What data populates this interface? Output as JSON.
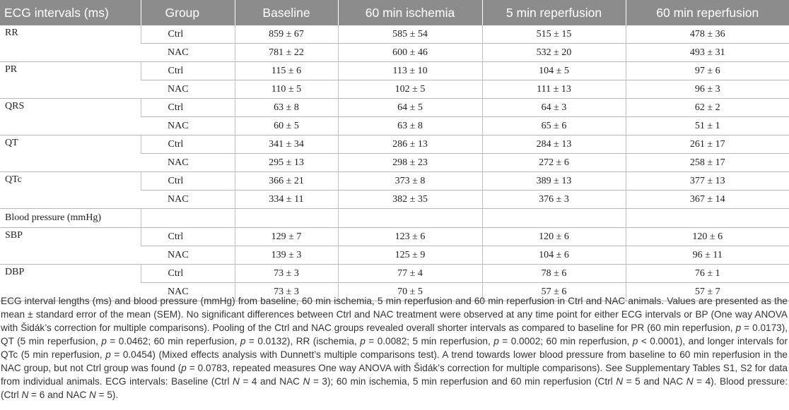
{
  "table": {
    "headers": [
      "ECG intervals (ms)",
      "Group",
      "Baseline",
      "60 min ischemia",
      "5 min reperfusion",
      "60 min reperfusion"
    ],
    "ecg_rows": [
      {
        "label": "RR",
        "ctrl": {
          "group": "Ctrl",
          "values": [
            "859 ± 67",
            "585 ± 54",
            "515 ± 15",
            "478 ± 36"
          ]
        },
        "nac": {
          "group": "NAC",
          "values": [
            "781 ± 22",
            "600 ± 46",
            "532 ± 20",
            "493 ± 31"
          ]
        }
      },
      {
        "label": "PR",
        "ctrl": {
          "group": "Ctrl",
          "values": [
            "115 ± 6",
            "113 ± 10",
            "104 ± 5",
            "97 ± 6"
          ]
        },
        "nac": {
          "group": "NAC",
          "values": [
            "110 ± 5",
            "102 ± 5",
            "111 ± 13",
            "96 ± 3"
          ]
        }
      },
      {
        "label": "QRS",
        "ctrl": {
          "group": "Ctrl",
          "values": [
            "63 ± 8",
            "64 ± 5",
            "64 ± 3",
            "62 ± 2"
          ]
        },
        "nac": {
          "group": "NAC",
          "values": [
            "60 ± 5",
            "63 ± 8",
            "65 ± 6",
            "51 ± 1"
          ]
        }
      },
      {
        "label": "QT",
        "ctrl": {
          "group": "Ctrl",
          "values": [
            "341 ± 34",
            "286 ± 13",
            "284 ± 13",
            "261 ± 17"
          ]
        },
        "nac": {
          "group": "NAC",
          "values": [
            "295 ± 13",
            "298 ± 23",
            "272 ± 6",
            "258 ± 17"
          ]
        }
      },
      {
        "label": "QTc",
        "ctrl": {
          "group": "Ctrl",
          "values": [
            "366 ± 21",
            "373 ± 8",
            "389 ± 13",
            "377 ± 13"
          ]
        },
        "nac": {
          "group": "NAC",
          "values": [
            "334 ± 11",
            "382 ± 35",
            "376 ± 3",
            "367 ± 14"
          ]
        }
      }
    ],
    "bp_section_label": "Blood pressure (mmHg)",
    "bp_rows": [
      {
        "label": "SBP",
        "ctrl": {
          "group": "Ctrl",
          "values": [
            "129 ± 7",
            "123 ± 6",
            "120 ± 6",
            "120 ± 6"
          ]
        },
        "nac": {
          "group": "NAC",
          "values": [
            "139 ± 3",
            "125 ± 9",
            "104 ± 6",
            "96 ± 11"
          ]
        }
      },
      {
        "label": "DBP",
        "ctrl": {
          "group": "Ctrl",
          "values": [
            "73 ± 3",
            "77 ± 4",
            "78 ± 6",
            "76 ± 1"
          ]
        },
        "nac": {
          "group": "NAC",
          "values": [
            "73 ± 3",
            "70 ± 5",
            "57 ± 6",
            "57 ± 7"
          ]
        }
      }
    ]
  },
  "caption": {
    "segments": [
      {
        "text": "ECG interval lengths (ms) and blood pressure (mmHg) from baseline, 60 min ischemia, 5 min reperfusion and 60 min reperfusion in Ctrl and NAC animals. Values are presented as the mean ± standard error of the mean (SEM). No significant differences between Ctrl and NAC treatment were observed at any time point for either ECG intervals or BP (One way ANOVA with Šidák’s correction for multiple comparisons). Pooling of the Ctrl and NAC groups revealed overall shorter intervals as compared to baseline for PR (60 min reperfusion, ",
        "italic": false
      },
      {
        "text": "p",
        "italic": true
      },
      {
        "text": " = 0.0173), QT (5 min reperfusion, ",
        "italic": false
      },
      {
        "text": "p",
        "italic": true
      },
      {
        "text": " = 0.0462; 60 min reperfusion, ",
        "italic": false
      },
      {
        "text": "p",
        "italic": true
      },
      {
        "text": " = 0.0132), RR (ischemia, ",
        "italic": false
      },
      {
        "text": "p",
        "italic": true
      },
      {
        "text": " = 0.0082; 5 min reperfusion, ",
        "italic": false
      },
      {
        "text": "p",
        "italic": true
      },
      {
        "text": " = 0.0002; 60 min reperfusion, ",
        "italic": false
      },
      {
        "text": "p",
        "italic": true
      },
      {
        "text": " < 0.0001), and longer intervals for QTc (5 min reperfusion, ",
        "italic": false
      },
      {
        "text": "p",
        "italic": true
      },
      {
        "text": " = 0.0454) (Mixed effects analysis with Dunnett’s multiple comparisons test). A trend towards lower blood pressure from baseline to 60 min reperfusion in the NAC group, but not Ctrl group was found (",
        "italic": false
      },
      {
        "text": "p",
        "italic": true
      },
      {
        "text": " = 0.0783, repeated measures One way ANOVA with Šidák’s correction for multiple comparisons). See Supplementary Tables S1, S2 for data from individual animals. ECG intervals: Baseline (Ctrl ",
        "italic": false
      },
      {
        "text": "N",
        "italic": true
      },
      {
        "text": " = 4 and NAC ",
        "italic": false
      },
      {
        "text": "N",
        "italic": true
      },
      {
        "text": " = 3); 60 min ischemia, 5 min reperfusion and 60 min reperfusion (Ctrl ",
        "italic": false
      },
      {
        "text": "N",
        "italic": true
      },
      {
        "text": " = 5 and NAC ",
        "italic": false
      },
      {
        "text": "N",
        "italic": true
      },
      {
        "text": " = 4). Blood pressure: (Ctrl ",
        "italic": false
      },
      {
        "text": "N",
        "italic": true
      },
      {
        "text": " = 6 and NAC ",
        "italic": false
      },
      {
        "text": "N",
        "italic": true
      },
      {
        "text": " = 5).",
        "italic": false
      }
    ]
  }
}
